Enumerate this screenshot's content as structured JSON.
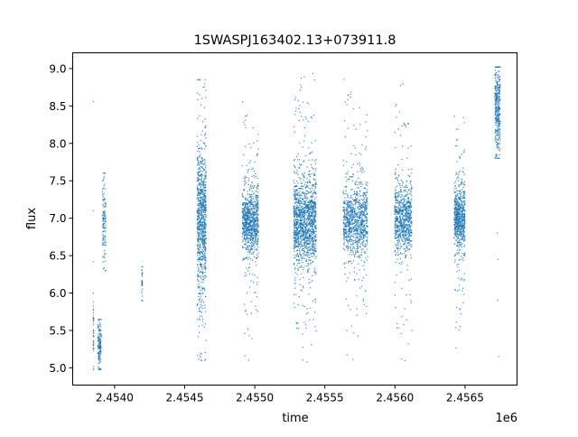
{
  "chart_data": {
    "type": "scatter",
    "title": "1SWASPJ163402.13+073911.8",
    "xlabel": "time",
    "ylabel": "flux",
    "x_offset_label": "1e6",
    "xlim": [
      2453701,
      2456871
    ],
    "ylim": [
      4.77,
      9.21
    ],
    "x_ticks": [
      2454000,
      2454500,
      2455000,
      2455500,
      2456000,
      2456500
    ],
    "x_tick_labels": [
      "2.4540",
      "2.4545",
      "2.4550",
      "2.4555",
      "2.4560",
      "2.4565"
    ],
    "y_ticks": [
      5.0,
      5.5,
      6.0,
      6.5,
      7.0,
      7.5,
      8.0,
      8.5,
      9.0
    ],
    "y_tick_labels": [
      "5.0",
      "5.5",
      "6.0",
      "6.5",
      "7.0",
      "7.5",
      "8.0",
      "8.5",
      "9.0"
    ],
    "grid": false,
    "marker_color": "#1f77b4",
    "clusters": [
      {
        "t": [
          2453847,
          2453851
        ],
        "flux_center": 5.5,
        "flux_sd": 0.3,
        "flux_range": [
          4.98,
          6.0
        ],
        "n": 40
      },
      {
        "t": [
          2453880,
          2453905
        ],
        "flux_center": 5.3,
        "flux_sd": 0.13,
        "flux_range": [
          4.98,
          5.65
        ],
        "n": 160
      },
      {
        "t": [
          2453913,
          2453938
        ],
        "flux_center": 6.95,
        "flux_sd": 0.25,
        "flux_range": [
          6.3,
          7.6
        ],
        "n": 120
      },
      {
        "t": [
          2454193,
          2454199
        ],
        "flux_center": 6.15,
        "flux_sd": 0.1,
        "flux_range": [
          5.9,
          6.35
        ],
        "n": 30
      },
      {
        "t": [
          2454589,
          2454653
        ],
        "flux_center": 7.0,
        "flux_sd": 0.45,
        "flux_range": [
          5.1,
          8.85
        ],
        "n": 900
      },
      {
        "t": [
          2454911,
          2455026
        ],
        "flux_center": 6.95,
        "flux_sd": 0.2,
        "flux_range": [
          4.98,
          8.6
        ],
        "n": 900
      },
      {
        "t": [
          2455277,
          2455438
        ],
        "flux_center": 6.95,
        "flux_sd": 0.28,
        "flux_range": [
          4.98,
          9.0
        ],
        "n": 1400
      },
      {
        "t": [
          2455631,
          2455805
        ],
        "flux_center": 6.95,
        "flux_sd": 0.22,
        "flux_range": [
          4.98,
          8.9
        ],
        "n": 1000
      },
      {
        "t": [
          2455998,
          2456120
        ],
        "flux_center": 7.0,
        "flux_sd": 0.22,
        "flux_range": [
          5.0,
          8.9
        ],
        "n": 800
      },
      {
        "t": [
          2456423,
          2456500
        ],
        "flux_center": 7.0,
        "flux_sd": 0.2,
        "flux_range": [
          5.1,
          8.4
        ],
        "n": 700
      },
      {
        "t": [
          2456712,
          2456751
        ],
        "flux_center": 8.45,
        "flux_sd": 0.25,
        "flux_range": [
          7.8,
          9.02
        ],
        "n": 350
      }
    ],
    "outliers": [
      {
        "t": 2453849,
        "flux": 8.56
      },
      {
        "t": 2453849,
        "flux": 7.1
      },
      {
        "t": 2453849,
        "flux": 6.42
      },
      {
        "t": 2456735,
        "flux": 5.9
      },
      {
        "t": 2456735,
        "flux": 6.45
      },
      {
        "t": 2456740,
        "flux": 5.15
      },
      {
        "t": 2456730,
        "flux": 6.8
      }
    ]
  }
}
